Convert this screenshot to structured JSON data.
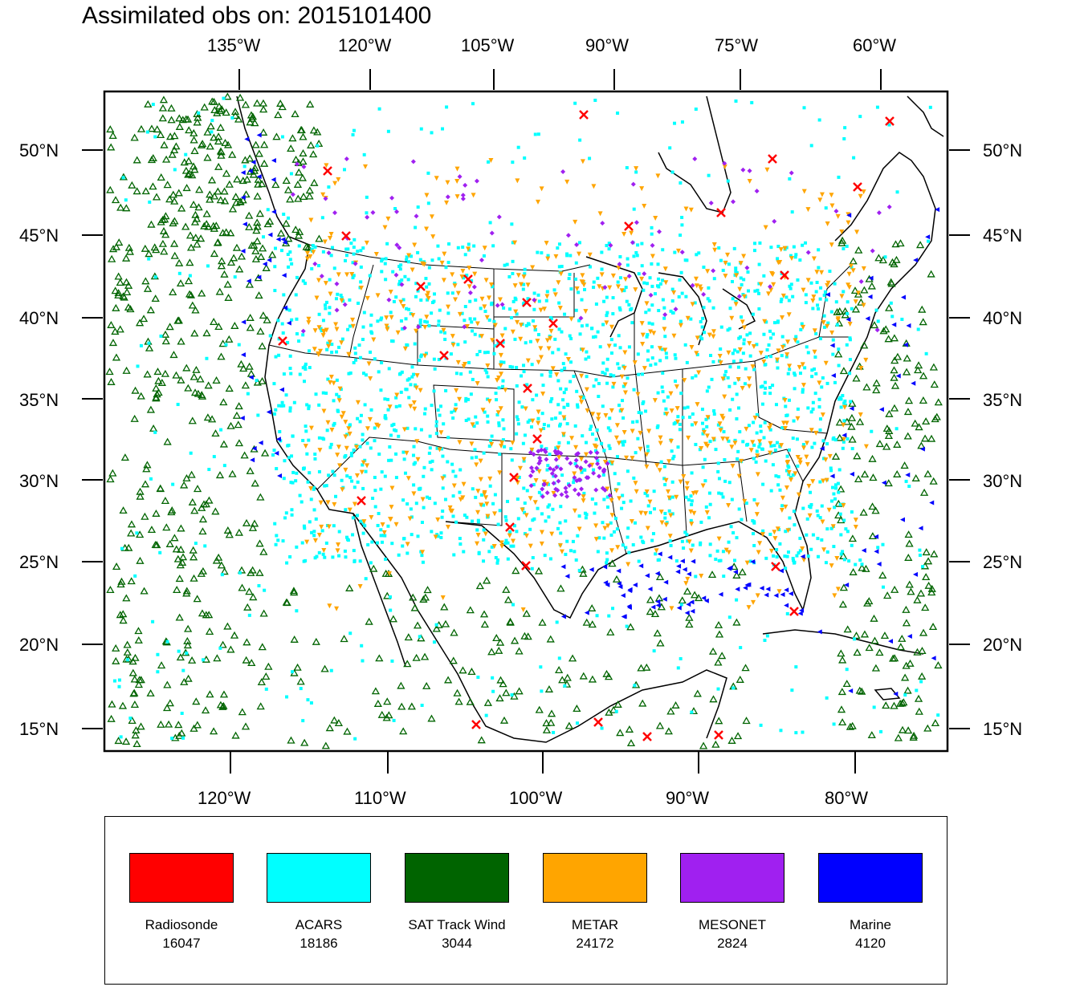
{
  "title": "Assimilated obs on: 2015101400",
  "top_lon_labels": [
    "135°W",
    "120°W",
    "105°W",
    "90°W",
    "75°W",
    "60°W"
  ],
  "bottom_lon_labels": [
    "120°W",
    "110°W",
    "100°W",
    "90°W",
    "80°W"
  ],
  "lat_labels": [
    "50°N",
    "45°N",
    "40°N",
    "35°N",
    "30°N",
    "25°N",
    "20°N",
    "15°N"
  ],
  "colors": {
    "radiosonde": "#ff0000",
    "acars": "#00ffff",
    "sat_track_wind": "#006400",
    "metar": "#ffa500",
    "mesonet": "#a020f0",
    "marine": "#0000ff",
    "coastline": "#000000"
  },
  "legend": [
    {
      "name": "Radiosonde",
      "count": "16047",
      "color": "#ff0000",
      "marker": "x"
    },
    {
      "name": "ACARS",
      "count": "18186",
      "color": "#00ffff",
      "marker": "square"
    },
    {
      "name": "SAT Track Wind",
      "count": "3044",
      "color": "#006400",
      "marker": "triangle-up-open"
    },
    {
      "name": "METAR",
      "count": "24172",
      "color": "#ffa500",
      "marker": "triangle-down"
    },
    {
      "name": "MESONET",
      "count": "2824",
      "color": "#a020f0",
      "marker": "diamond"
    },
    {
      "name": "Marine",
      "count": "4120",
      "color": "#0000ff",
      "marker": "triangle-left"
    }
  ]
}
